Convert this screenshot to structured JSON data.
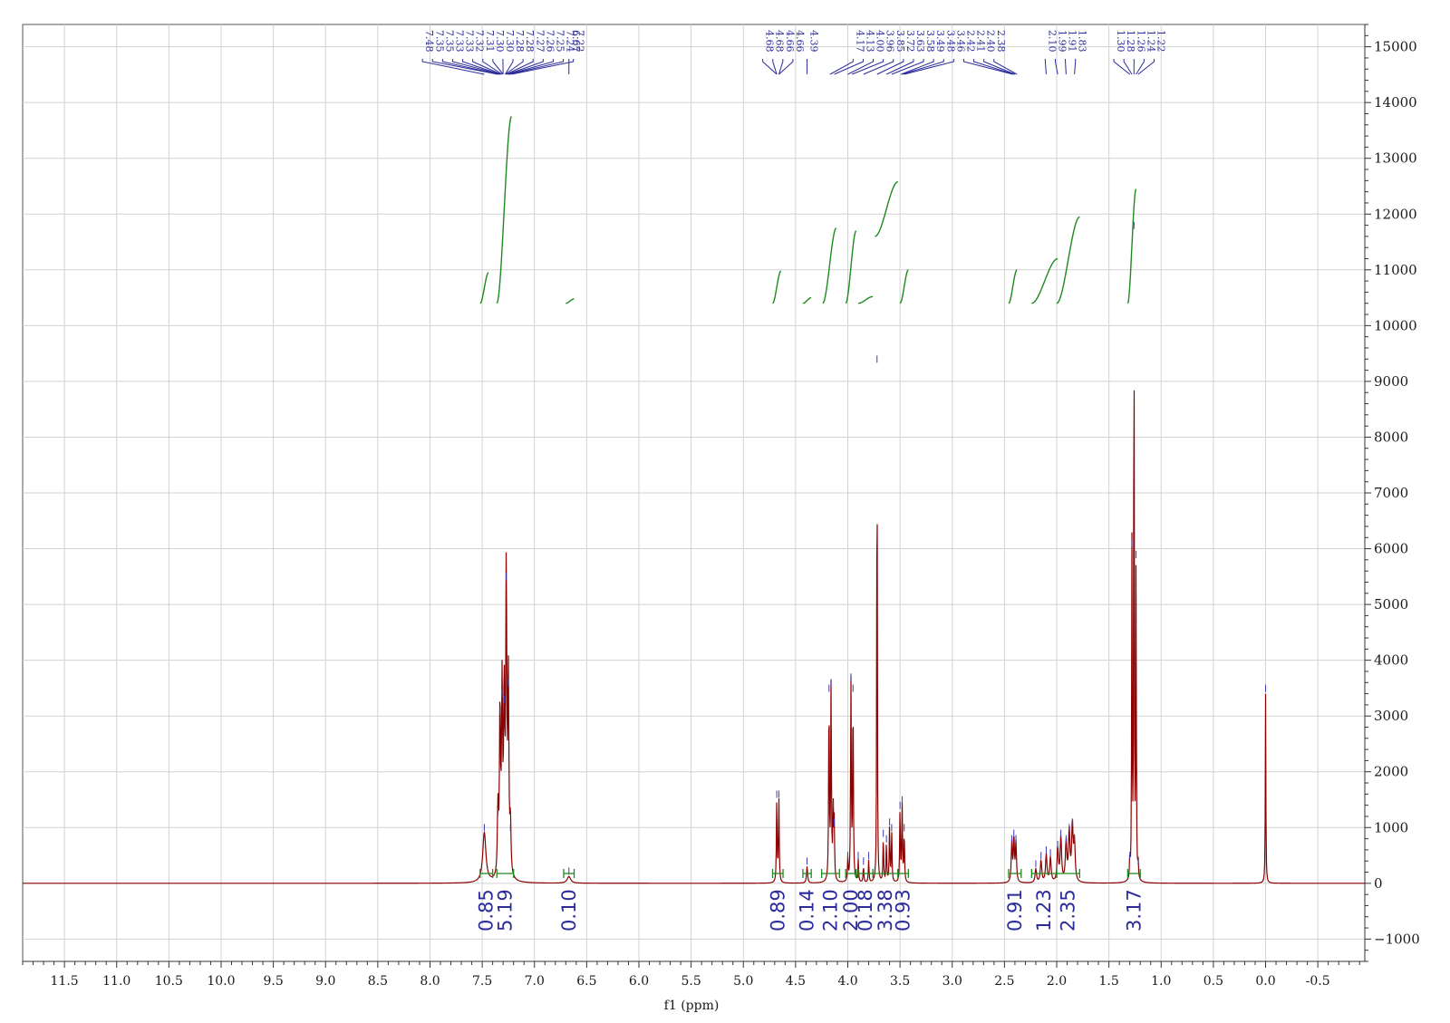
{
  "chart_data": {
    "type": "line",
    "xlabel": "f1 (ppm)",
    "ylabel": "",
    "xlim": [
      11.9,
      -0.95
    ],
    "ylim": [
      -1400,
      15400
    ],
    "x_reversed": true,
    "grid": true,
    "x_ticks": [
      11.5,
      11.0,
      10.5,
      10.0,
      9.5,
      9.0,
      8.5,
      8.0,
      7.5,
      7.0,
      6.5,
      6.0,
      5.5,
      5.0,
      4.5,
      4.0,
      3.5,
      3.0,
      2.5,
      2.0,
      1.5,
      1.0,
      0.5,
      0.0,
      -0.5
    ],
    "x_tick_labels": [
      "11.5",
      "11.0",
      "10.5",
      "10.0",
      "9.5",
      "9.0",
      "8.5",
      "8.0",
      "7.5",
      "7.0",
      "6.5",
      "6.0",
      "5.5",
      "5.0",
      "4.5",
      "4.0",
      "3.5",
      "3.0",
      "2.5",
      "2.0",
      "1.5",
      "1.0",
      "0.5",
      "0.0",
      "-0.5"
    ],
    "y_ticks": [
      -1000,
      0,
      1000,
      2000,
      3000,
      4000,
      5000,
      6000,
      7000,
      8000,
      9000,
      10000,
      11000,
      12000,
      13000,
      14000,
      15000
    ],
    "y_tick_labels": [
      "−1000",
      "0",
      "1000",
      "2000",
      "3000",
      "4000",
      "5000",
      "6000",
      "7000",
      "8000",
      "9000",
      "10000",
      "11000",
      "12000",
      "13000",
      "14000",
      "15000"
    ],
    "series": [
      {
        "color": "#8b0000",
        "peaks": [
          {
            "x": 7.48,
            "h": 900,
            "w": 0.018
          },
          {
            "x": 7.35,
            "h": 1200,
            "w": 0.006
          },
          {
            "x": 7.33,
            "h": 3000,
            "w": 0.006
          },
          {
            "x": 7.31,
            "h": 3300,
            "w": 0.006
          },
          {
            "x": 7.29,
            "h": 3200,
            "w": 0.006
          },
          {
            "x": 7.27,
            "h": 5400,
            "w": 0.006
          },
          {
            "x": 7.25,
            "h": 3500,
            "w": 0.006
          },
          {
            "x": 7.23,
            "h": 900,
            "w": 0.006
          },
          {
            "x": 6.67,
            "h": 120,
            "w": 0.02
          },
          {
            "x": 4.68,
            "h": 1500,
            "w": 0.004
          },
          {
            "x": 4.66,
            "h": 1500,
            "w": 0.004
          },
          {
            "x": 4.39,
            "h": 300,
            "w": 0.006
          },
          {
            "x": 4.18,
            "h": 3400,
            "w": 0.004
          },
          {
            "x": 4.16,
            "h": 3500,
            "w": 0.004
          },
          {
            "x": 4.14,
            "h": 1300,
            "w": 0.004
          },
          {
            "x": 4.13,
            "h": 1000,
            "w": 0.004
          },
          {
            "x": 4.0,
            "h": 400,
            "w": 0.004
          },
          {
            "x": 3.97,
            "h": 3600,
            "w": 0.004
          },
          {
            "x": 3.95,
            "h": 3400,
            "w": 0.004
          },
          {
            "x": 3.9,
            "h": 400,
            "w": 0.004
          },
          {
            "x": 3.85,
            "h": 300,
            "w": 0.004
          },
          {
            "x": 3.8,
            "h": 400,
            "w": 0.004
          },
          {
            "x": 3.72,
            "h": 9300,
            "w": 0.003
          },
          {
            "x": 3.66,
            "h": 800,
            "w": 0.004
          },
          {
            "x": 3.63,
            "h": 700,
            "w": 0.004
          },
          {
            "x": 3.6,
            "h": 1000,
            "w": 0.004
          },
          {
            "x": 3.58,
            "h": 900,
            "w": 0.004
          },
          {
            "x": 3.5,
            "h": 1300,
            "w": 0.004
          },
          {
            "x": 3.48,
            "h": 1400,
            "w": 0.004
          },
          {
            "x": 3.46,
            "h": 900,
            "w": 0.004
          },
          {
            "x": 2.43,
            "h": 700,
            "w": 0.006
          },
          {
            "x": 2.41,
            "h": 800,
            "w": 0.006
          },
          {
            "x": 2.39,
            "h": 700,
            "w": 0.006
          },
          {
            "x": 2.2,
            "h": 250,
            "w": 0.008
          },
          {
            "x": 2.15,
            "h": 400,
            "w": 0.008
          },
          {
            "x": 2.1,
            "h": 500,
            "w": 0.008
          },
          {
            "x": 2.06,
            "h": 450,
            "w": 0.008
          },
          {
            "x": 1.99,
            "h": 600,
            "w": 0.008
          },
          {
            "x": 1.96,
            "h": 800,
            "w": 0.008
          },
          {
            "x": 1.91,
            "h": 700,
            "w": 0.008
          },
          {
            "x": 1.88,
            "h": 900,
            "w": 0.008
          },
          {
            "x": 1.85,
            "h": 1000,
            "w": 0.008
          },
          {
            "x": 1.83,
            "h": 700,
            "w": 0.008
          },
          {
            "x": 1.3,
            "h": 400,
            "w": 0.003
          },
          {
            "x": 1.28,
            "h": 6000,
            "w": 0.003
          },
          {
            "x": 1.26,
            "h": 11700,
            "w": 0.003
          },
          {
            "x": 1.24,
            "h": 5800,
            "w": 0.003
          },
          {
            "x": 1.22,
            "h": 300,
            "w": 0.003
          },
          {
            "x": 0.0,
            "h": 3400,
            "w": 0.003
          }
        ]
      }
    ],
    "peak_groups": [
      {
        "labels": [
          "7.48",
          "7.35",
          "7.35",
          "7.33",
          "7.33",
          "7.32",
          "7.31",
          "7.30",
          "7.30",
          "7.28",
          "7.28",
          "7.27",
          "7.26",
          "7.25",
          "7.24",
          "7.22"
        ],
        "from": 7.48,
        "to": 7.22
      },
      {
        "labels": [
          "6.67"
        ],
        "from": 6.67,
        "to": 6.67
      },
      {
        "labels": [
          "4.68",
          "4.68",
          "4.66",
          "4.66"
        ],
        "from": 4.68,
        "to": 4.66
      },
      {
        "labels": [
          "4.39"
        ],
        "from": 4.39,
        "to": 4.39
      },
      {
        "labels": [
          "4.17",
          "4.13",
          "4.00",
          "3.96",
          "3.85",
          "3.72",
          "3.63",
          "3.58",
          "3.49",
          "3.48",
          "3.46",
          "2.42",
          "2.41",
          "2.40",
          "2.38"
        ],
        "from": 4.17,
        "to": 2.38
      },
      {
        "labels": [
          "2.10",
          "1.99",
          "1.91",
          "1.83"
        ],
        "from": 2.1,
        "to": 1.83
      },
      {
        "labels": [
          "1.30",
          "1.28",
          "1.26",
          "1.24",
          "1.22"
        ],
        "from": 1.3,
        "to": 1.22
      }
    ],
    "integrals": [
      {
        "value": "0.85",
        "from": 7.52,
        "to": 7.4
      },
      {
        "value": "5.19",
        "from": 7.36,
        "to": 7.2
      },
      {
        "value": "0.10",
        "from": 6.72,
        "to": 6.62
      },
      {
        "value": "0.89",
        "from": 4.72,
        "to": 4.62
      },
      {
        "value": "0.14",
        "from": 4.43,
        "to": 4.35
      },
      {
        "value": "2.10",
        "from": 4.25,
        "to": 4.08
      },
      {
        "value": "2.00",
        "from": 4.02,
        "to": 3.92
      },
      {
        "value": "0.18",
        "from": 3.9,
        "to": 3.76
      },
      {
        "value": "3.38",
        "from": 3.76,
        "to": 3.52
      },
      {
        "value": "0.93",
        "from": 3.52,
        "to": 3.42
      },
      {
        "value": "0.91",
        "from": 2.46,
        "to": 2.34
      },
      {
        "value": "1.23",
        "from": 2.24,
        "to": 2.0
      },
      {
        "value": "2.35",
        "from": 2.0,
        "to": 1.78
      },
      {
        "value": "3.17",
        "from": 1.32,
        "to": 1.2
      }
    ],
    "integral_curves": [
      {
        "from": 7.52,
        "to": 7.44,
        "y0": 10400,
        "y1": 10950
      },
      {
        "from": 7.36,
        "to": 7.22,
        "y0": 10400,
        "y1": 13750
      },
      {
        "from": 6.7,
        "to": 6.62,
        "y0": 10400,
        "y1": 10480
      },
      {
        "from": 4.72,
        "to": 4.64,
        "y0": 10400,
        "y1": 10980
      },
      {
        "from": 4.43,
        "to": 4.35,
        "y0": 10400,
        "y1": 10500
      },
      {
        "from": 4.24,
        "to": 4.11,
        "y0": 10400,
        "y1": 11750
      },
      {
        "from": 4.02,
        "to": 3.92,
        "y0": 10400,
        "y1": 11700
      },
      {
        "from": 3.9,
        "to": 3.76,
        "y0": 10400,
        "y1": 10520
      },
      {
        "from": 3.74,
        "to": 3.52,
        "y0": 11600,
        "y1": 12580
      },
      {
        "from": 3.5,
        "to": 3.42,
        "y0": 10400,
        "y1": 11000
      },
      {
        "from": 2.46,
        "to": 2.38,
        "y0": 10400,
        "y1": 11000
      },
      {
        "from": 2.24,
        "to": 1.99,
        "y0": 10400,
        "y1": 11200
      },
      {
        "from": 2.0,
        "to": 1.78,
        "y0": 10400,
        "y1": 11950
      },
      {
        "from": 1.32,
        "to": 1.24,
        "y0": 10400,
        "y1": 12450
      }
    ]
  }
}
